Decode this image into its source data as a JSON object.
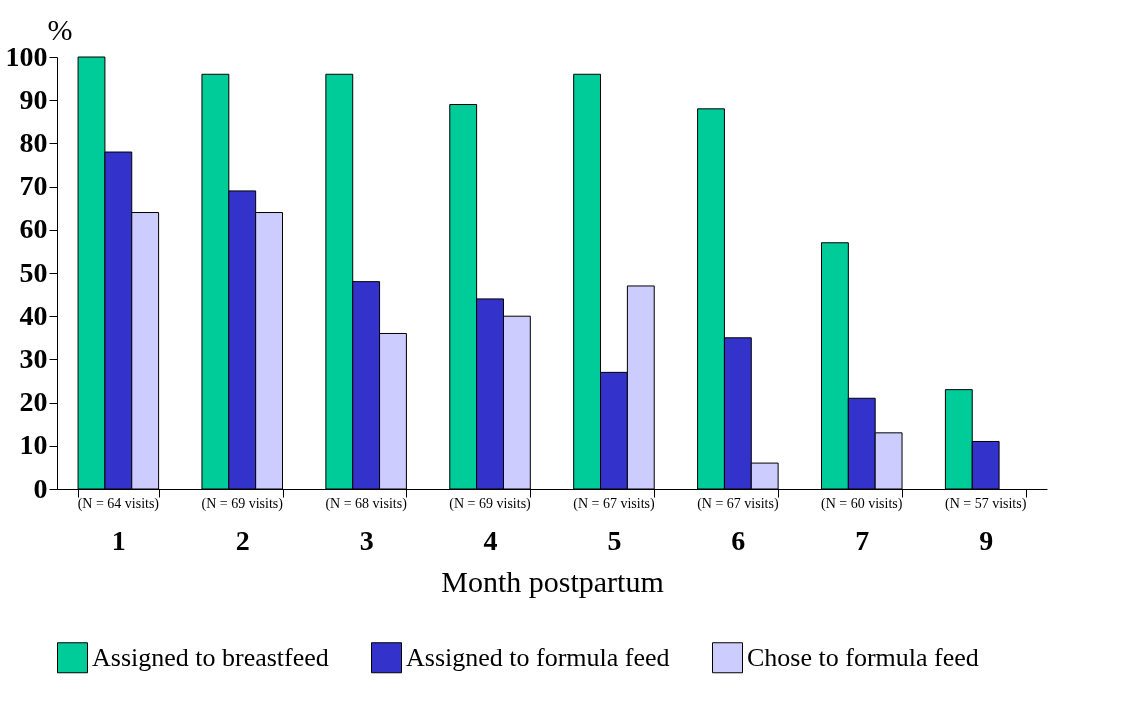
{
  "chart_data": {
    "type": "bar",
    "ylabel": "%",
    "xlabel": "Month postpartum",
    "categories": [
      "1",
      "2",
      "3",
      "4",
      "5",
      "6",
      "7",
      "9"
    ],
    "series": [
      {
        "name": "Assigned to breastfeed",
        "color": "#00cc99",
        "values": [
          100,
          96,
          96,
          89,
          96,
          88,
          57,
          23
        ]
      },
      {
        "name": "Assigned to formula feed",
        "color": "#3333cc",
        "values": [
          78,
          69,
          48,
          44,
          27,
          35,
          21,
          11
        ]
      },
      {
        "name": "Chose to formula feed",
        "color": "#ccccff",
        "values": [
          64,
          64,
          36,
          40,
          47,
          6,
          13,
          null
        ]
      }
    ],
    "ylim": [
      0,
      100
    ],
    "yticks": [
      0,
      10,
      20,
      30,
      40,
      50,
      60,
      70,
      80,
      90,
      100
    ],
    "legend": "bottom",
    "annotations": [
      "(N = 64 visits)",
      "(N = 69 visits)",
      "(N = 68 visits)",
      "(N = 69 visits)",
      "(N = 67 visits)",
      "(N = 67 visits)",
      "(N = 60 visits)",
      "(N = 57 visits)"
    ]
  }
}
